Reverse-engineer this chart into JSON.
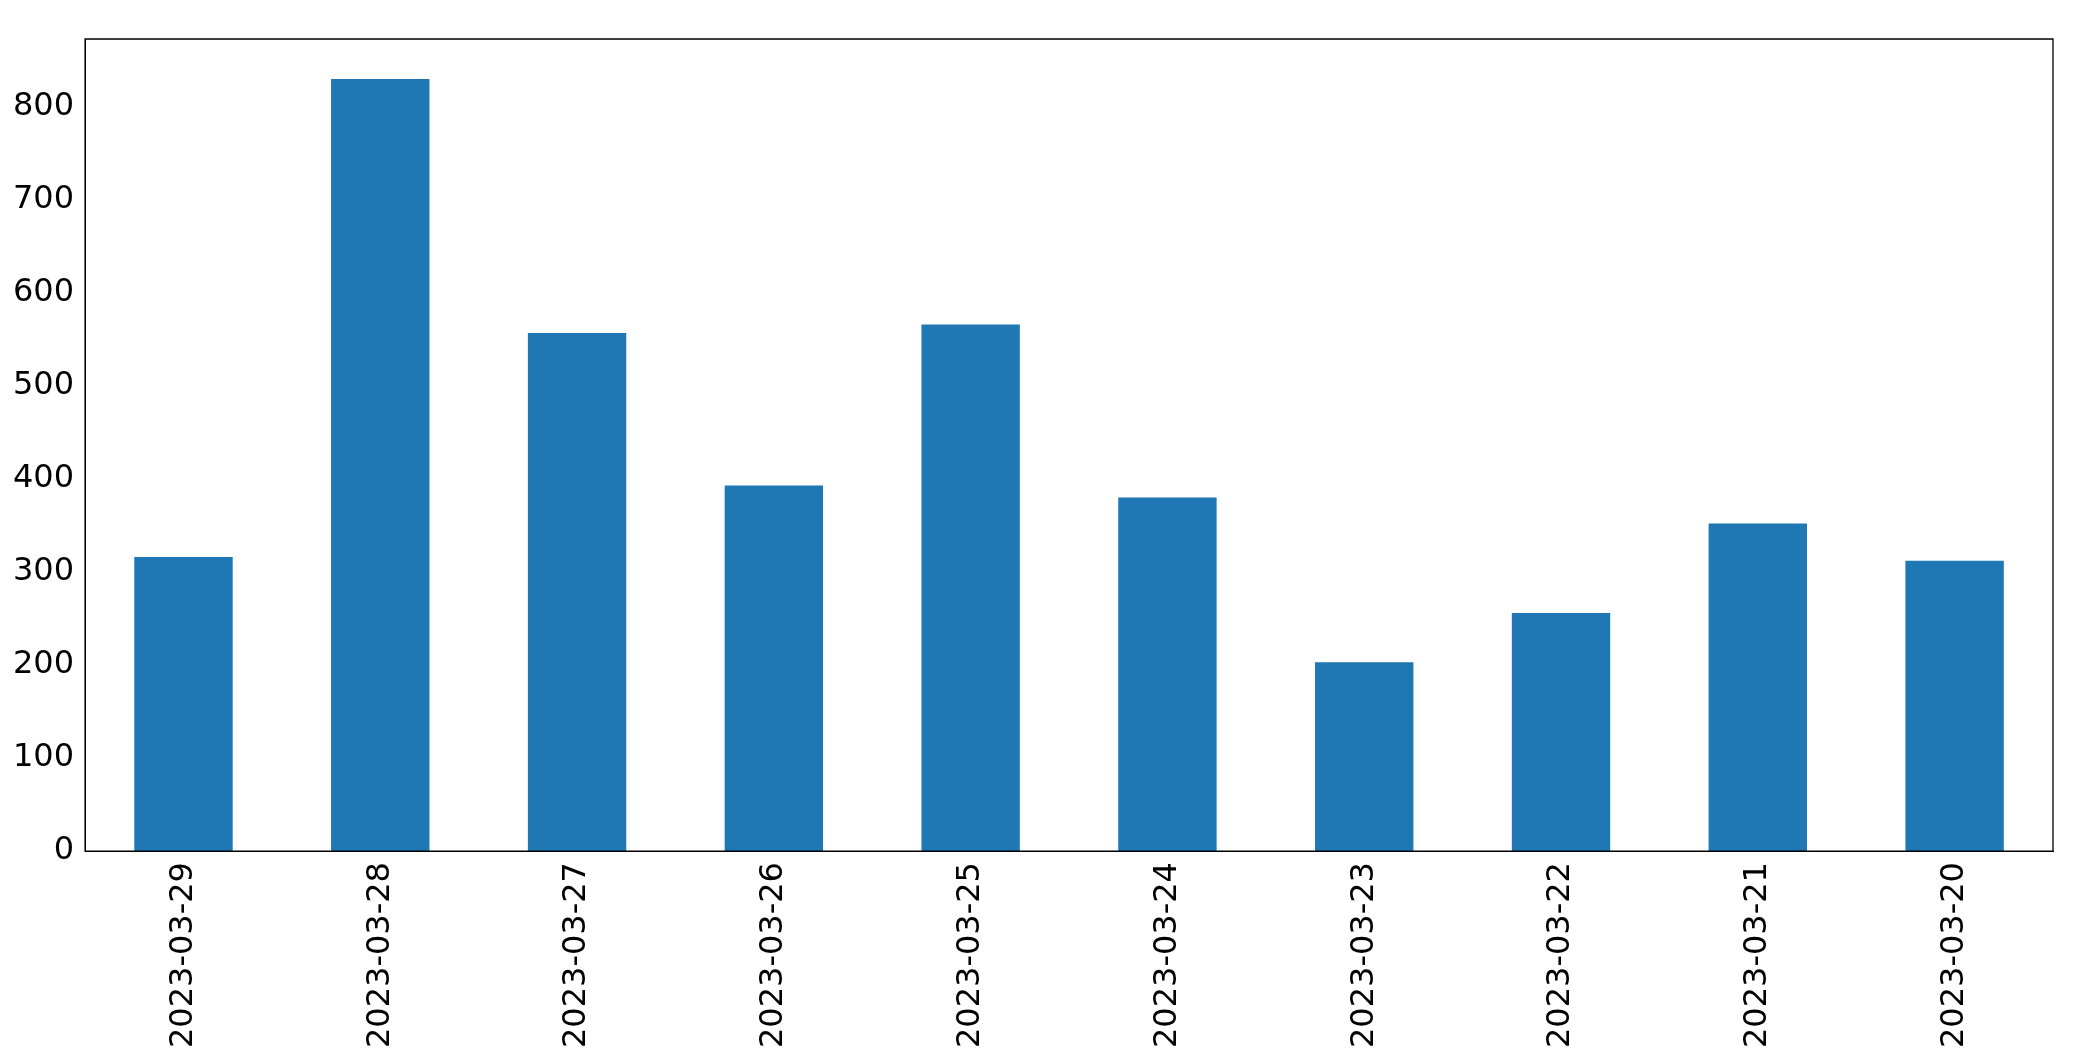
{
  "chart_data": {
    "type": "bar",
    "categories": [
      "2023-03-29",
      "2023-03-28",
      "2023-03-27",
      "2023-03-26",
      "2023-03-25",
      "2023-03-24",
      "2023-03-23",
      "2023-03-22",
      "2023-03-21",
      "2023-03-20"
    ],
    "values": [
      316,
      830,
      557,
      393,
      566,
      380,
      203,
      256,
      352,
      312
    ],
    "color": "#1f77b4",
    "ylim": [
      0,
      873
    ],
    "yticks": [
      0,
      100,
      200,
      300,
      400,
      500,
      600,
      700,
      800
    ],
    "grid": false,
    "legend": false
  }
}
